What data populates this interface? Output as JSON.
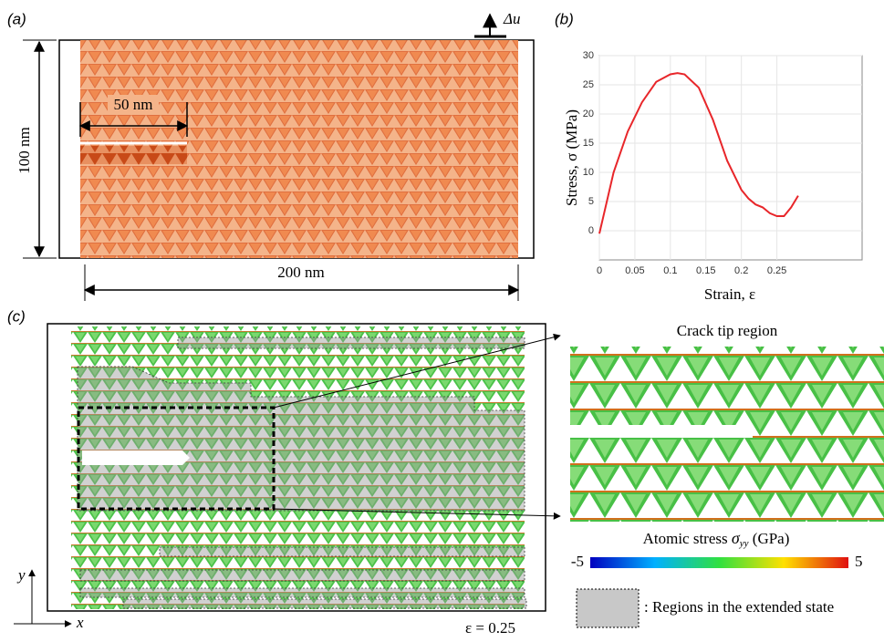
{
  "panels": {
    "a": "(a)",
    "b": "(b)",
    "c": "(c)"
  },
  "panel_a": {
    "displacement": "Δu",
    "height": "100 nm",
    "crack_length": "50 nm",
    "width": "200 nm"
  },
  "chart_data": {
    "type": "line",
    "x_label": "Strain, ε",
    "y_label": "Stress, σ (MPa)",
    "x": [
      0,
      0.02,
      0.04,
      0.06,
      0.08,
      0.1,
      0.11,
      0.12,
      0.14,
      0.16,
      0.18,
      0.2,
      0.21,
      0.22,
      0.23,
      0.24,
      0.25,
      0.26,
      0.27,
      0.28
    ],
    "values": [
      -0.5,
      10,
      17,
      22,
      25.5,
      26.8,
      27,
      26.8,
      24.5,
      19,
      12,
      7,
      5.5,
      4.5,
      4,
      3,
      2.5,
      2.5,
      4,
      6
    ],
    "color": "#e8262a",
    "xlim": [
      0,
      0.37
    ],
    "ylim": [
      -5,
      30
    ],
    "xticks": [
      0,
      0.05,
      0.1,
      0.15,
      0.2,
      0.25
    ],
    "yticks": [
      0,
      5,
      10,
      15,
      20,
      25,
      30
    ],
    "grid": true
  },
  "panel_c": {
    "inset_title": "Crack tip region",
    "colorbar": {
      "label_prefix": "Atomic stress ",
      "label_symbol": "σ",
      "label_subscript": "yy",
      "label_unit": " (GPa)",
      "min": -5,
      "max": 5
    },
    "legend": ": Regions in the extended state",
    "axis_x": "x",
    "axis_y": "y",
    "strain_label": "ε = 0.25"
  }
}
